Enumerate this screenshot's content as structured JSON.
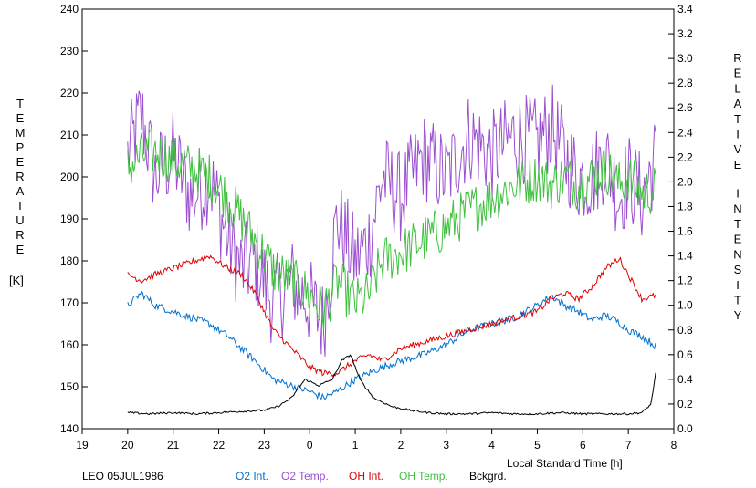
{
  "chart_data": {
    "type": "line",
    "station": "LEO 05JUL1986",
    "left_axis": {
      "title": "TEMPERATURE",
      "unit": "[K]",
      "range": [
        140,
        240
      ],
      "ticks": [
        140,
        150,
        160,
        170,
        180,
        190,
        200,
        210,
        220,
        230,
        240
      ]
    },
    "right_axis": {
      "title": "RELATIVE INTENSITY",
      "range": [
        0.0,
        3.4
      ],
      "ticks": [
        "0.0",
        "0.2",
        "0.4",
        "0.6",
        "0.8",
        "1.0",
        "1.2",
        "1.4",
        "1.6",
        "1.8",
        "2.0",
        "2.2",
        "2.4",
        "2.6",
        "2.8",
        "3.0",
        "3.2",
        "3.4"
      ]
    },
    "x_axis": {
      "title": "Local Standard Time [h]",
      "range_hours_continuous": [
        19,
        32
      ],
      "tick_labels": [
        "19",
        "20",
        "21",
        "22",
        "23",
        "0",
        "1",
        "2",
        "3",
        "4",
        "5",
        "6",
        "7",
        "8"
      ]
    },
    "grid": false,
    "legend": {
      "placement": "bottom"
    },
    "series": [
      {
        "name": "O2 Int.",
        "axis": "right",
        "color": "#0070d0",
        "points": [
          [
            20.0,
            1.0
          ],
          [
            20.3,
            1.1
          ],
          [
            20.6,
            1.0
          ],
          [
            21.0,
            0.95
          ],
          [
            21.4,
            0.9
          ],
          [
            21.8,
            0.85
          ],
          [
            22.2,
            0.75
          ],
          [
            22.5,
            0.65
          ],
          [
            22.8,
            0.55
          ],
          [
            23.2,
            0.4
          ],
          [
            23.6,
            0.35
          ],
          [
            24.0,
            0.3
          ],
          [
            24.3,
            0.25
          ],
          [
            24.6,
            0.3
          ],
          [
            25.0,
            0.4
          ],
          [
            25.3,
            0.45
          ],
          [
            25.6,
            0.5
          ],
          [
            26.0,
            0.55
          ],
          [
            26.5,
            0.6
          ],
          [
            27.0,
            0.68
          ],
          [
            27.5,
            0.8
          ],
          [
            28.0,
            0.85
          ],
          [
            28.5,
            0.9
          ],
          [
            29.0,
            1.0
          ],
          [
            29.3,
            1.08
          ],
          [
            29.6,
            1.0
          ],
          [
            29.9,
            0.95
          ],
          [
            30.2,
            0.88
          ],
          [
            30.5,
            0.92
          ],
          [
            30.8,
            0.86
          ],
          [
            31.0,
            0.8
          ],
          [
            31.3,
            0.75
          ],
          [
            31.6,
            0.67
          ]
        ]
      },
      {
        "name": "O2 Temp.",
        "axis": "left",
        "color": "#9b4fd0",
        "points": [
          [
            20.0,
            205
          ],
          [
            20.3,
            215
          ],
          [
            20.6,
            200
          ],
          [
            21.0,
            205
          ],
          [
            21.4,
            195
          ],
          [
            21.8,
            200
          ],
          [
            22.2,
            185
          ],
          [
            22.5,
            178
          ],
          [
            22.8,
            180
          ],
          [
            23.2,
            170
          ],
          [
            23.6,
            175
          ],
          [
            24.0,
            170
          ],
          [
            24.3,
            165
          ],
          [
            24.6,
            190
          ],
          [
            25.0,
            180
          ],
          [
            25.3,
            185
          ],
          [
            25.6,
            200
          ],
          [
            26.0,
            195
          ],
          [
            26.5,
            205
          ],
          [
            27.0,
            200
          ],
          [
            27.5,
            210
          ],
          [
            28.0,
            205
          ],
          [
            28.5,
            210
          ],
          [
            29.0,
            208
          ],
          [
            29.3,
            212
          ],
          [
            29.6,
            205
          ],
          [
            29.9,
            200
          ],
          [
            30.2,
            200
          ],
          [
            30.5,
            205
          ],
          [
            30.8,
            195
          ],
          [
            31.0,
            200
          ],
          [
            31.3,
            195
          ],
          [
            31.6,
            205
          ]
        ]
      },
      {
        "name": "OH Int.",
        "axis": "right",
        "color": "#e00000",
        "points": [
          [
            20.0,
            1.25
          ],
          [
            20.3,
            1.2
          ],
          [
            20.6,
            1.25
          ],
          [
            21.0,
            1.3
          ],
          [
            21.4,
            1.35
          ],
          [
            21.8,
            1.4
          ],
          [
            22.2,
            1.3
          ],
          [
            22.5,
            1.25
          ],
          [
            22.8,
            1.1
          ],
          [
            23.2,
            0.8
          ],
          [
            23.6,
            0.65
          ],
          [
            24.0,
            0.5
          ],
          [
            24.3,
            0.45
          ],
          [
            24.6,
            0.45
          ],
          [
            25.0,
            0.55
          ],
          [
            25.3,
            0.6
          ],
          [
            25.6,
            0.55
          ],
          [
            26.0,
            0.65
          ],
          [
            26.5,
            0.7
          ],
          [
            27.0,
            0.75
          ],
          [
            27.5,
            0.8
          ],
          [
            28.0,
            0.85
          ],
          [
            28.5,
            0.9
          ],
          [
            29.0,
            0.95
          ],
          [
            29.3,
            1.05
          ],
          [
            29.6,
            1.1
          ],
          [
            29.9,
            1.05
          ],
          [
            30.2,
            1.15
          ],
          [
            30.5,
            1.3
          ],
          [
            30.8,
            1.38
          ],
          [
            31.0,
            1.25
          ],
          [
            31.3,
            1.05
          ],
          [
            31.6,
            1.08
          ]
        ]
      },
      {
        "name": "OH Temp.",
        "axis": "left",
        "color": "#40c040",
        "points": [
          [
            20.0,
            202
          ],
          [
            20.3,
            205
          ],
          [
            20.6,
            206
          ],
          [
            21.0,
            204
          ],
          [
            21.4,
            202
          ],
          [
            21.8,
            200
          ],
          [
            22.2,
            195
          ],
          [
            22.5,
            190
          ],
          [
            22.8,
            185
          ],
          [
            23.2,
            178
          ],
          [
            23.6,
            175
          ],
          [
            24.0,
            172
          ],
          [
            24.3,
            168
          ],
          [
            24.6,
            175
          ],
          [
            25.0,
            170
          ],
          [
            25.3,
            172
          ],
          [
            25.6,
            180
          ],
          [
            26.0,
            182
          ],
          [
            26.5,
            185
          ],
          [
            27.0,
            188
          ],
          [
            27.5,
            192
          ],
          [
            28.0,
            195
          ],
          [
            28.5,
            198
          ],
          [
            29.0,
            200
          ],
          [
            29.3,
            198
          ],
          [
            29.6,
            200
          ],
          [
            29.9,
            198
          ],
          [
            30.2,
            200
          ],
          [
            30.5,
            202
          ],
          [
            30.8,
            198
          ],
          [
            31.0,
            200
          ],
          [
            31.3,
            196
          ],
          [
            31.6,
            197
          ]
        ]
      },
      {
        "name": "Bckgrd.",
        "axis": "right",
        "color": "#000000",
        "points": [
          [
            20.0,
            0.13
          ],
          [
            20.5,
            0.12
          ],
          [
            21.0,
            0.13
          ],
          [
            21.5,
            0.12
          ],
          [
            22.0,
            0.13
          ],
          [
            22.5,
            0.14
          ],
          [
            23.0,
            0.15
          ],
          [
            23.3,
            0.18
          ],
          [
            23.6,
            0.25
          ],
          [
            23.9,
            0.4
          ],
          [
            24.2,
            0.35
          ],
          [
            24.5,
            0.4
          ],
          [
            24.7,
            0.55
          ],
          [
            24.9,
            0.6
          ],
          [
            25.1,
            0.4
          ],
          [
            25.4,
            0.25
          ],
          [
            25.8,
            0.18
          ],
          [
            26.2,
            0.15
          ],
          [
            26.6,
            0.13
          ],
          [
            27.0,
            0.12
          ],
          [
            27.5,
            0.12
          ],
          [
            28.0,
            0.13
          ],
          [
            28.5,
            0.12
          ],
          [
            29.0,
            0.12
          ],
          [
            29.5,
            0.13
          ],
          [
            30.0,
            0.12
          ],
          [
            30.5,
            0.12
          ],
          [
            31.0,
            0.12
          ],
          [
            31.3,
            0.13
          ],
          [
            31.5,
            0.2
          ],
          [
            31.6,
            0.45
          ]
        ]
      }
    ]
  }
}
